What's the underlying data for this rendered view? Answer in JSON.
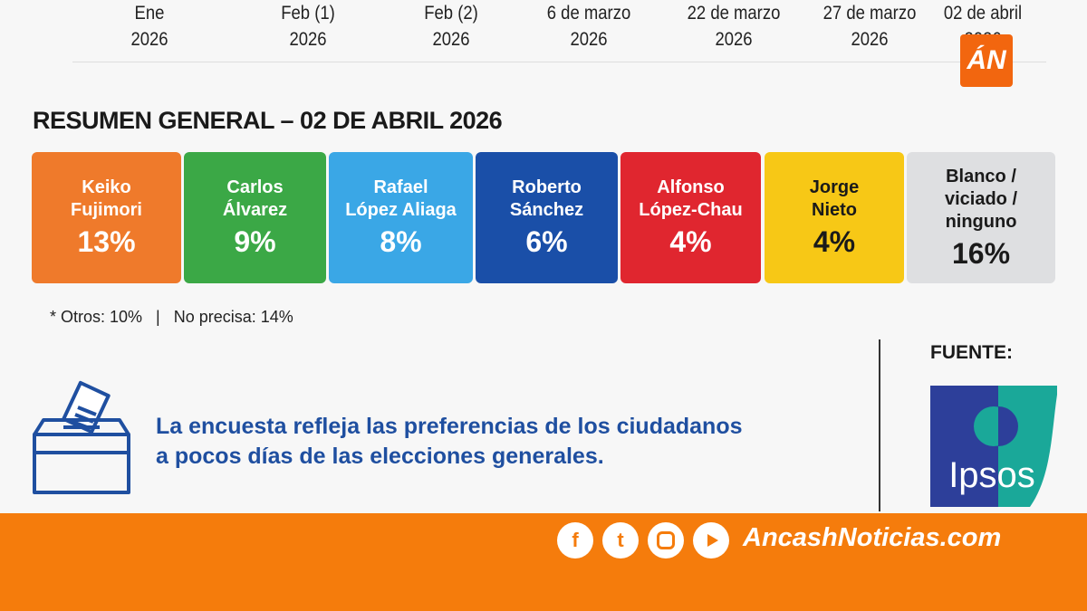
{
  "timeline": [
    {
      "label": "Ene",
      "year": "2026"
    },
    {
      "label": "Feb (1)",
      "year": "2026"
    },
    {
      "label": "Feb (2)",
      "year": "2026"
    },
    {
      "label": "6 de marzo",
      "year": "2026"
    },
    {
      "label": "22 de marzo",
      "year": "2026"
    },
    {
      "label": "27 de marzo",
      "year": "2026"
    },
    {
      "label": "02 de abril",
      "year": "2026"
    }
  ],
  "brand_logo": "ÁN",
  "title": "RESUMEN GENERAL – 02 DE ABRIL 2026",
  "cards": [
    {
      "name": "Keiko\nFujimori",
      "value": "13%",
      "color": "#ef7a2b"
    },
    {
      "name": "Carlos\nÁlvarez",
      "value": "9%",
      "color": "#3ba846"
    },
    {
      "name": "Rafael\nLópez Aliaga",
      "value": "8%",
      "color": "#3aa7e6"
    },
    {
      "name": "Roberto\nSánchez",
      "value": "6%",
      "color": "#1a4fa8"
    },
    {
      "name": "Alfonso\nLópez-Chau",
      "value": "4%",
      "color": "#e0262f"
    },
    {
      "name": "Jorge\nNieto",
      "value": "4%",
      "color": "#f7c816"
    },
    {
      "name": "Blanco /\nviciado /\nninguno",
      "value": "16%",
      "color": "#dedfe1"
    }
  ],
  "note": "* Otros: 10%   |   No precisa: 14%",
  "fuente_label": "FUENTE:",
  "source_logo": "Ipsos",
  "message": [
    "La encuesta refleja las preferencias de los ciudadanos",
    "a pocos días de las elecciones generales."
  ],
  "footer": {
    "social": [
      "facebook-icon",
      "twitter-icon",
      "instagram-icon",
      "youtube-icon"
    ],
    "site": "AncashNoticias.com",
    "color": "#f57c0c"
  }
}
